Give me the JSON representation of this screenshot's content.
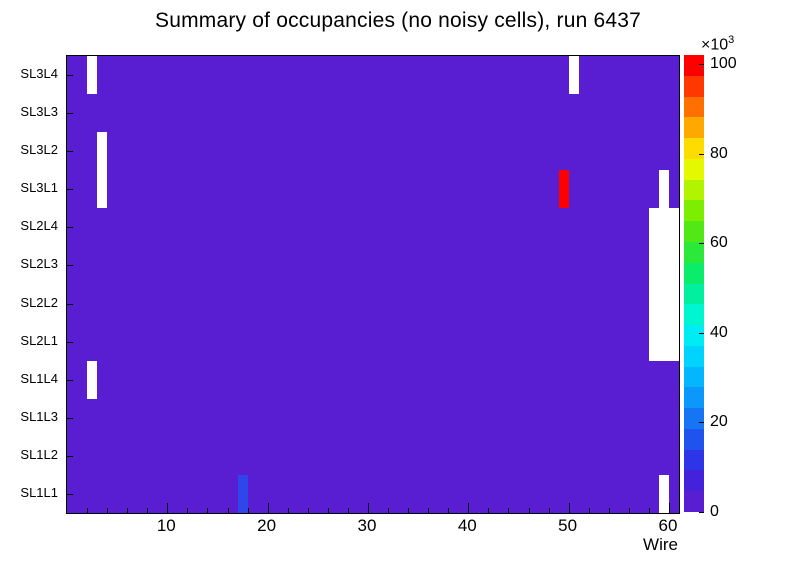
{
  "title": "Summary of occupancies (no noisy cells), run 6437",
  "chart_data": {
    "type": "heatmap",
    "title": "Summary of occupancies (no noisy cells), run 6437",
    "xlabel": "Wire",
    "x_range": [
      0,
      61
    ],
    "x_major_ticks": [
      10,
      20,
      30,
      40,
      50,
      60
    ],
    "x_minor_tick_step": 2,
    "rows": [
      "SL3L4",
      "SL3L3",
      "SL3L2",
      "SL3L1",
      "SL2L4",
      "SL2L3",
      "SL2L2",
      "SL2L1",
      "SL1L4",
      "SL1L3",
      "SL1L2",
      "SL1L1"
    ],
    "background_value_color": "#5a1ed2",
    "cells": [
      {
        "row": "SL3L4",
        "wire": 3,
        "w": 1,
        "h": 1,
        "color": "#ffffff"
      },
      {
        "row": "SL3L2",
        "wire": 4,
        "w": 1,
        "h": 2,
        "color": "#ffffff"
      },
      {
        "row": "SL3L4",
        "wire": 51,
        "w": 1,
        "h": 1,
        "color": "#ffffff"
      },
      {
        "row": "SL3L1",
        "wire": 50,
        "w": 1,
        "h": 1,
        "color": "#ff0000"
      },
      {
        "row": "SL3L1",
        "wire": 60,
        "w": 1,
        "h": 1,
        "color": "#ffffff"
      },
      {
        "row": "SL2L4",
        "wire": 59,
        "w": 3,
        "h": 4,
        "color": "#ffffff"
      },
      {
        "row": "SL1L4",
        "wire": 3,
        "w": 1,
        "h": 1,
        "color": "#ffffff"
      },
      {
        "row": "SL1L1",
        "wire": 18,
        "w": 1,
        "h": 1,
        "color": "#2e46ea"
      },
      {
        "row": "SL1L1",
        "wire": 60,
        "w": 1,
        "h": 1,
        "color": "#ffffff"
      }
    ],
    "colorbar": {
      "max_value": 102,
      "tick_values": [
        0,
        20,
        40,
        60,
        80,
        100
      ],
      "exponent_base": "×10",
      "exponent_exp": "3",
      "palette": [
        "#5a1ed2",
        "#4422dc",
        "#2e35e6",
        "#2053ee",
        "#1675f5",
        "#0c97fa",
        "#04b6fd",
        "#00d4fe",
        "#00ecf4",
        "#00f6d0",
        "#00f0a0",
        "#0aec6a",
        "#2ce83a",
        "#52e815",
        "#7eee00",
        "#b2f400",
        "#e4f800",
        "#ffdc00",
        "#ffa800",
        "#ff7000",
        "#ff3800",
        "#ff0000"
      ]
    }
  }
}
